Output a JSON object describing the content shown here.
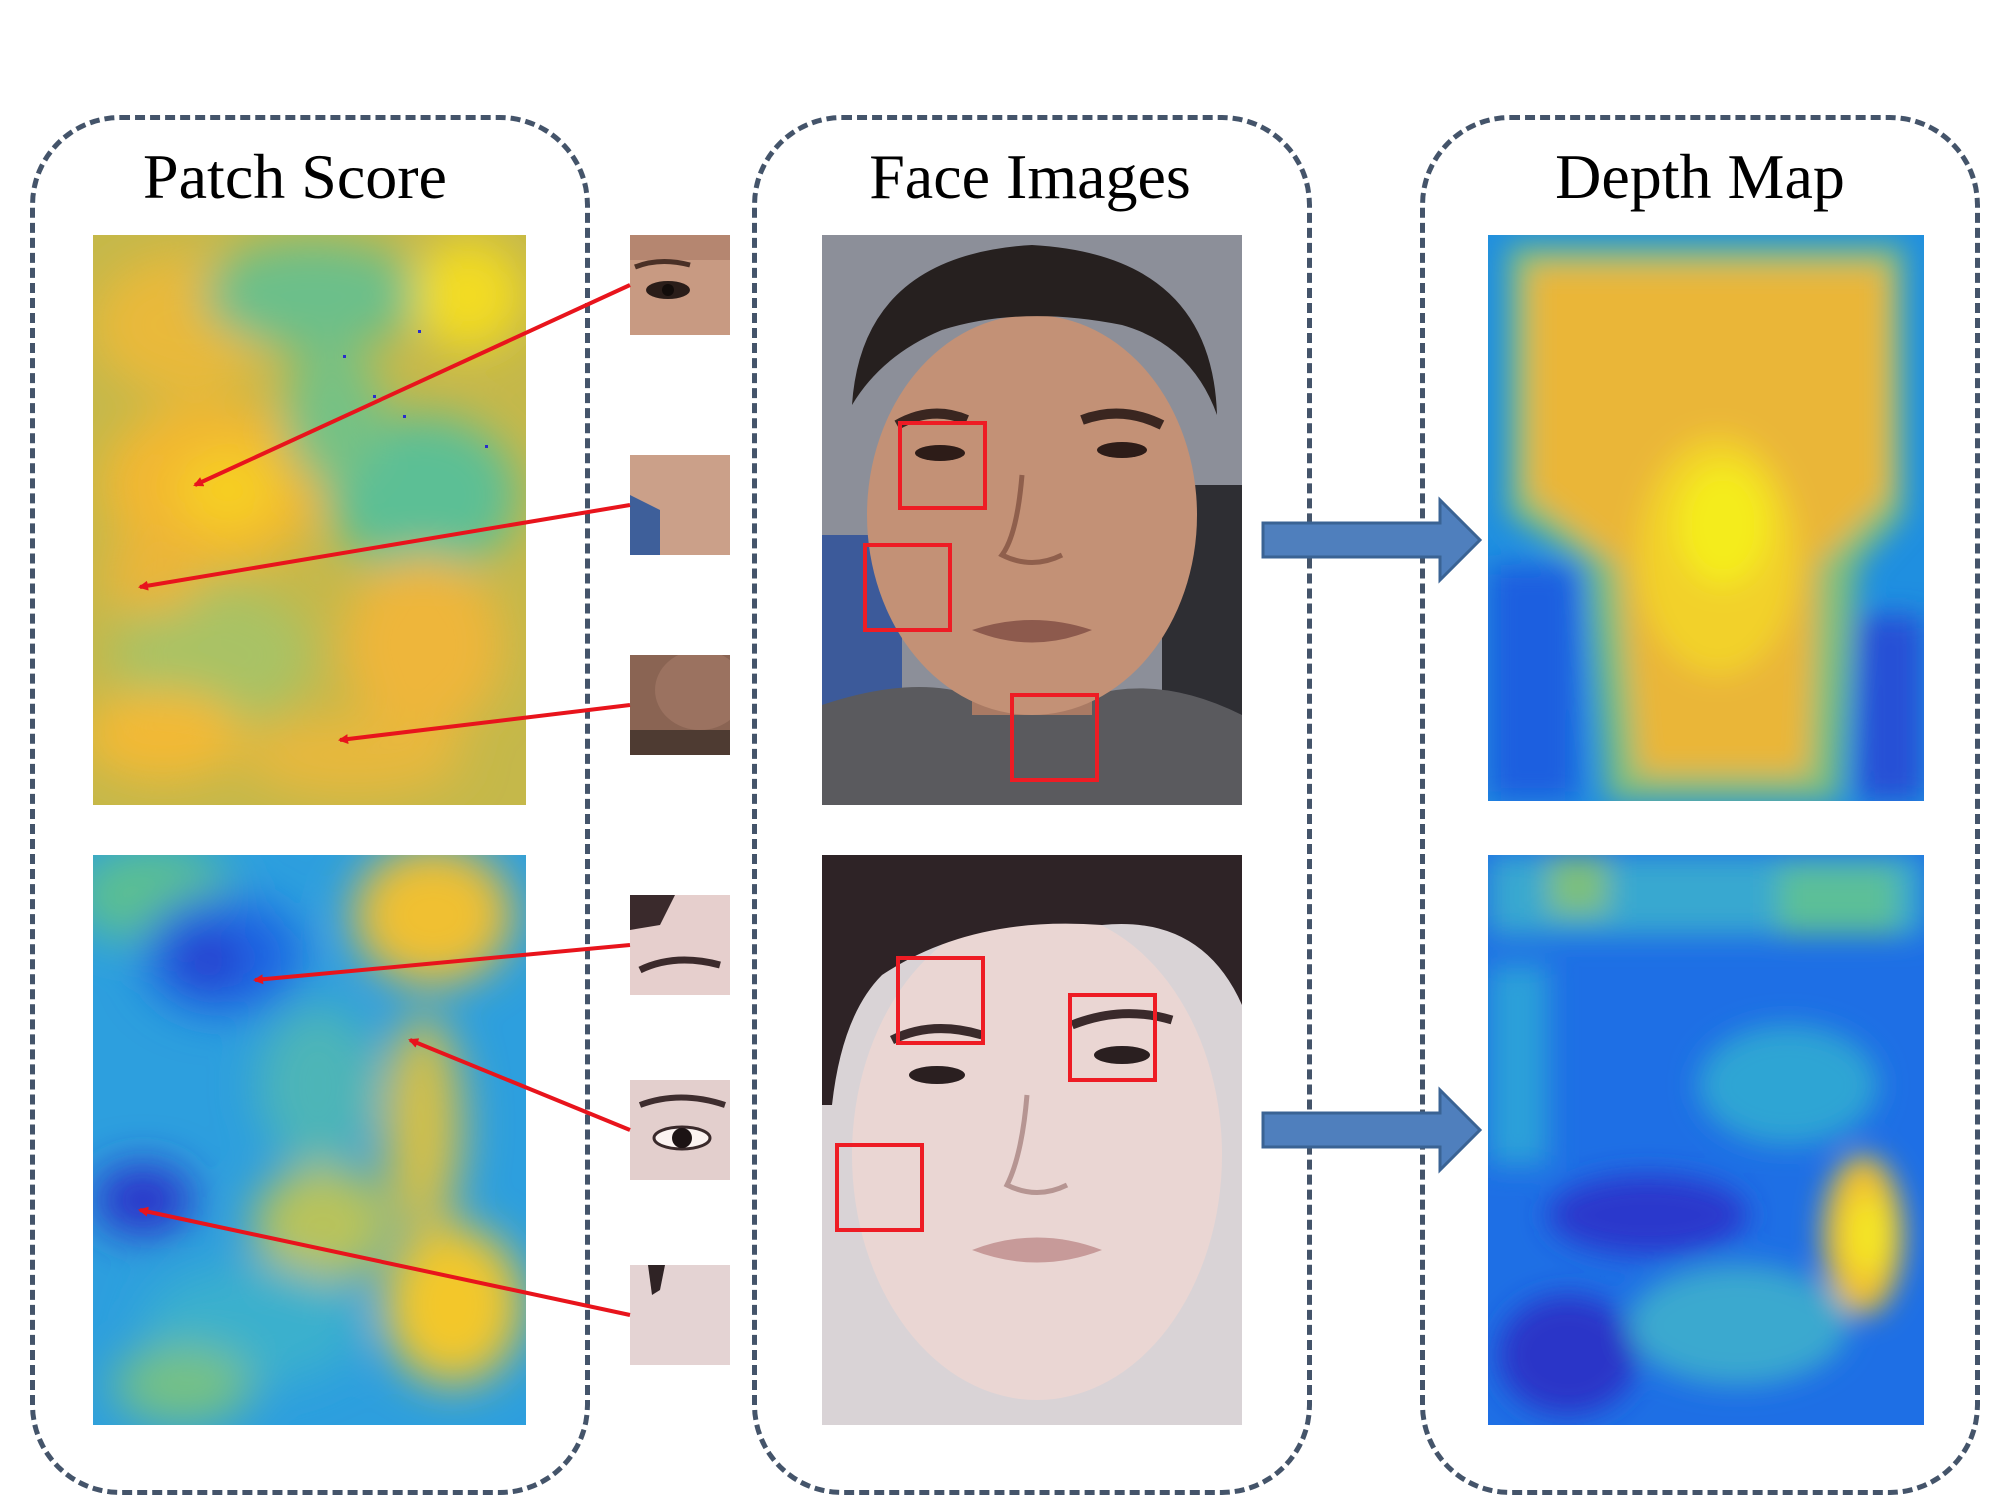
{
  "titles": {
    "patch_score": "Patch Score",
    "face_images": "Face Images",
    "depth_map": "Depth Map"
  },
  "colors": {
    "panel_border": "#44546a",
    "arrow_line": "#e8141c",
    "flow_arrow_fill": "#4f7fbd",
    "flow_arrow_stroke": "#3a6394",
    "patch_box": "#ee1c24",
    "colormap": [
      "#2a2ec9",
      "#1a74e8",
      "#20a8da",
      "#5fbf92",
      "#b9c25a",
      "#f2b733",
      "#f3e01f"
    ]
  },
  "rows": [
    {
      "patch_score_map": "warm-dominant",
      "face": "real-face",
      "depth_map": "face-shaped-warm",
      "patch_count": 3
    },
    {
      "patch_score_map": "cool-dominant",
      "face": "spoof-face",
      "depth_map": "flat-cool",
      "patch_count": 3
    }
  ]
}
